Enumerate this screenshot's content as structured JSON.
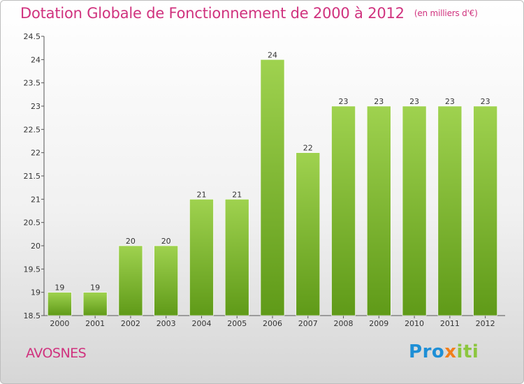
{
  "title": "Dotation Globale de Fonctionnement de 2000 à 2012",
  "subtitle": "(en milliers d'€)",
  "commune": "AVOSNES",
  "logo": {
    "letters": [
      "P",
      "r",
      "o",
      "x",
      "i",
      "t",
      "i"
    ],
    "colors": [
      "#1e8fd6",
      "#1e8fd6",
      "#1e8fd6",
      "#f27f1b",
      "#8cc63f",
      "#8cc63f",
      "#8cc63f"
    ]
  },
  "colors": {
    "bar_top": "#9fd24f",
    "bar_bottom": "#5f9a18",
    "title": "#d0327e"
  },
  "chart_data": {
    "type": "bar",
    "categories": [
      "2000",
      "2001",
      "2002",
      "2003",
      "2004",
      "2005",
      "2006",
      "2007",
      "2008",
      "2009",
      "2010",
      "2011",
      "2012"
    ],
    "values": [
      19,
      19,
      20,
      20,
      21,
      21,
      24,
      22,
      23,
      23,
      23,
      23,
      23
    ],
    "data_labels": [
      "19",
      "19",
      "20",
      "20",
      "21",
      "21",
      "24",
      "22",
      "23",
      "23",
      "23",
      "23",
      "23"
    ],
    "ylim": [
      18.5,
      24.5
    ],
    "yticks": [
      "18.5",
      "19",
      "19.5",
      "20",
      "20.5",
      "21",
      "21.5",
      "22",
      "22.5",
      "23",
      "23.5",
      "24",
      "24.5"
    ],
    "grid": false
  }
}
